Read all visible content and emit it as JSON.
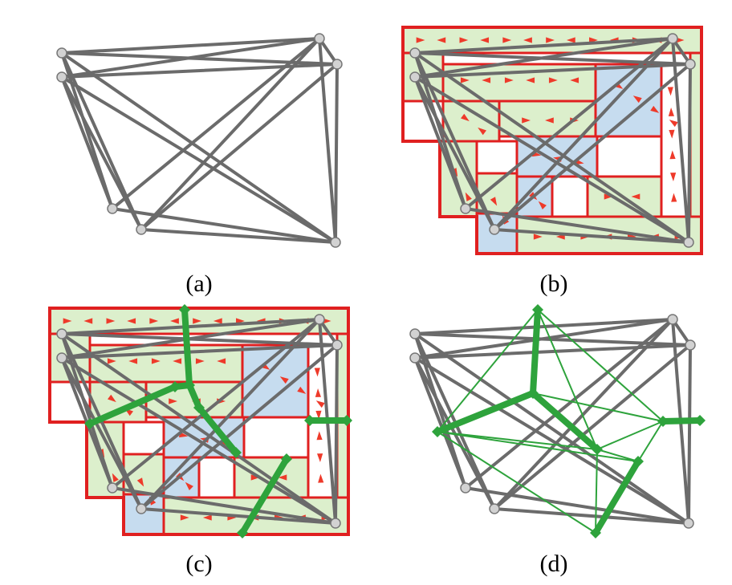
{
  "panels": [
    {
      "id": "a",
      "label": "(a)"
    },
    {
      "id": "b",
      "label": "(b)"
    },
    {
      "id": "c",
      "label": "(c)"
    },
    {
      "id": "d",
      "label": "(d)"
    }
  ],
  "colors": {
    "edge": "#6b6b6b",
    "node_fill": "#d2d2d2",
    "node_stroke": "#777777",
    "region_border": "#e02020",
    "region_green": "#dcefcc",
    "region_blue": "#c6dcef",
    "arrow": "#ee3a2a",
    "dual": "#2ea33c"
  }
}
